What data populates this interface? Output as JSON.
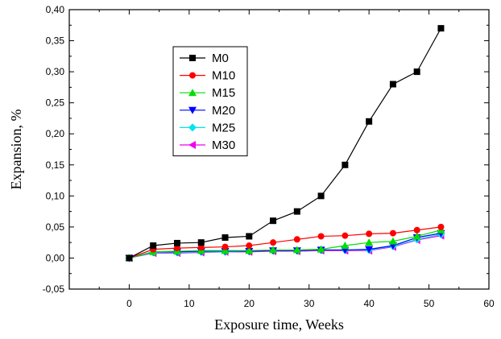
{
  "chart_data": {
    "type": "line",
    "title": "",
    "xlabel": "Exposure time, Weeks",
    "ylabel": "Expansion, %",
    "xlim": [
      -10,
      60
    ],
    "ylim": [
      -0.05,
      0.4
    ],
    "x_ticks": [
      0,
      10,
      20,
      30,
      40,
      50,
      60
    ],
    "x_tick_labels": [
      "0",
      "10",
      "20",
      "30",
      "40",
      "50",
      "60"
    ],
    "y_ticks": [
      -0.05,
      0.0,
      0.05,
      0.1,
      0.15,
      0.2,
      0.25,
      0.3,
      0.35,
      0.4
    ],
    "y_tick_labels": [
      "-0,05",
      "0,00",
      "0,05",
      "0,10",
      "0,15",
      "0,20",
      "0,25",
      "0,30",
      "0,35",
      "0,40"
    ],
    "grid": false,
    "legend_position": "upper-left-inside",
    "series": [
      {
        "name": "M0",
        "color": "#000000",
        "marker": "square",
        "x": [
          0,
          4,
          8,
          12,
          16,
          20,
          24,
          28,
          32,
          36,
          40,
          44,
          48,
          52
        ],
        "y": [
          0.0,
          0.02,
          0.024,
          0.025,
          0.033,
          0.035,
          0.06,
          0.075,
          0.1,
          0.15,
          0.22,
          0.28,
          0.3,
          0.37
        ]
      },
      {
        "name": "M10",
        "color": "#ff0000",
        "marker": "circle",
        "x": [
          0,
          4,
          8,
          12,
          16,
          20,
          24,
          28,
          32,
          36,
          40,
          44,
          48,
          52
        ],
        "y": [
          0.0,
          0.014,
          0.016,
          0.017,
          0.018,
          0.02,
          0.025,
          0.03,
          0.035,
          0.036,
          0.039,
          0.04,
          0.045,
          0.05
        ]
      },
      {
        "name": "M15",
        "color": "#00dd00",
        "marker": "triangle-up",
        "x": [
          0,
          4,
          8,
          12,
          16,
          20,
          24,
          28,
          32,
          36,
          40,
          44,
          48,
          52
        ],
        "y": [
          0.0,
          0.01,
          0.011,
          0.012,
          0.012,
          0.012,
          0.013,
          0.013,
          0.014,
          0.02,
          0.025,
          0.027,
          0.035,
          0.045
        ]
      },
      {
        "name": "M20",
        "color": "#0000ff",
        "marker": "triangle-down",
        "x": [
          0,
          4,
          8,
          12,
          16,
          20,
          24,
          28,
          32,
          36,
          40,
          44,
          48,
          52
        ],
        "y": [
          0.0,
          0.01,
          0.01,
          0.011,
          0.011,
          0.011,
          0.012,
          0.012,
          0.013,
          0.013,
          0.014,
          0.02,
          0.033,
          0.04
        ]
      },
      {
        "name": "M25",
        "color": "#00e5ee",
        "marker": "diamond",
        "x": [
          0,
          4,
          8,
          12,
          16,
          20,
          24,
          28,
          32,
          36,
          40,
          44,
          48,
          52
        ],
        "y": [
          0.0,
          0.009,
          0.009,
          0.01,
          0.01,
          0.011,
          0.012,
          0.012,
          0.013,
          0.013,
          0.013,
          0.019,
          0.03,
          0.038
        ]
      },
      {
        "name": "M30",
        "color": "#ee00ee",
        "marker": "triangle-left",
        "x": [
          0,
          4,
          8,
          12,
          16,
          20,
          24,
          28,
          32,
          36,
          40,
          44,
          48,
          52
        ],
        "y": [
          0.0,
          0.008,
          0.008,
          0.009,
          0.01,
          0.01,
          0.011,
          0.011,
          0.012,
          0.012,
          0.012,
          0.018,
          0.029,
          0.036
        ]
      }
    ]
  }
}
